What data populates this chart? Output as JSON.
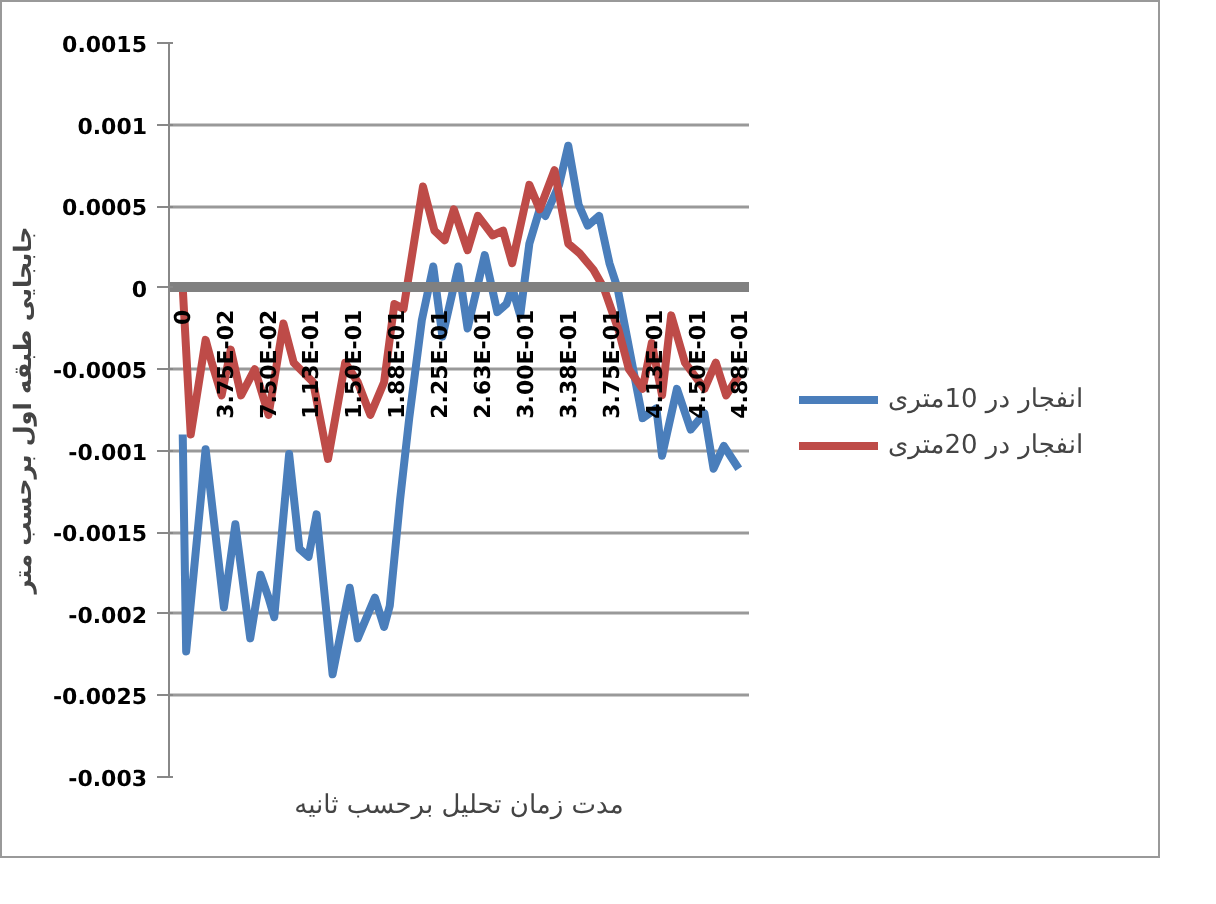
{
  "chart_data": {
    "type": "line",
    "xlabel": "مدت زمان تحلیل برحسب ثانیه",
    "ylabel": "جابجایی طبقه اول برحسب متر",
    "xlim": [
      -0.012,
      0.495
    ],
    "ylim": [
      -0.003,
      0.0015
    ],
    "xticks": [
      {
        "value": 0,
        "label": "0"
      },
      {
        "value": 0.0375,
        "label": "3.75E-02"
      },
      {
        "value": 0.075,
        "label": "7.50E-02"
      },
      {
        "value": 0.1125,
        "label": "1.13E-01"
      },
      {
        "value": 0.15,
        "label": "1.50E-01"
      },
      {
        "value": 0.1875,
        "label": "1.88E-01"
      },
      {
        "value": 0.225,
        "label": "2.25E-01"
      },
      {
        "value": 0.2625,
        "label": "2.63E-01"
      },
      {
        "value": 0.3,
        "label": "3.00E-01"
      },
      {
        "value": 0.3375,
        "label": "3.38E-01"
      },
      {
        "value": 0.375,
        "label": "3.75E-01"
      },
      {
        "value": 0.4125,
        "label": "4.13E-01"
      },
      {
        "value": 0.45,
        "label": "4.50E-01"
      },
      {
        "value": 0.4875,
        "label": "4.88E-01"
      }
    ],
    "yticks": [
      -0.003,
      -0.0025,
      -0.002,
      -0.0015,
      -0.001,
      -0.0005,
      0,
      0.0005,
      0.001,
      0.0015
    ],
    "grid": "y",
    "legend": "right",
    "marker": "none",
    "line_style": "solid",
    "series": [
      {
        "name": "انفجار در 10متری",
        "color": "#4a7ebb",
        "x": [
          0,
          0.003,
          0.02,
          0.036,
          0.046,
          0.059,
          0.068,
          0.075,
          0.08,
          0.093,
          0.102,
          0.11,
          0.117,
          0.131,
          0.146,
          0.153,
          0.168,
          0.176,
          0.181,
          0.19,
          0.198,
          0.209,
          0.219,
          0.227,
          0.241,
          0.249,
          0.264,
          0.275,
          0.283,
          0.288,
          0.295,
          0.303,
          0.312,
          0.317,
          0.329,
          0.337,
          0.346,
          0.354,
          0.364,
          0.373,
          0.38,
          0.388,
          0.397,
          0.402,
          0.414,
          0.419,
          0.432,
          0.444,
          0.456,
          0.464,
          0.473,
          0.486
        ],
        "values": [
          -0.0009,
          -0.00223,
          -0.00099,
          -0.00196,
          -0.00145,
          -0.00215,
          -0.00176,
          -0.0019,
          -0.00202,
          -0.00102,
          -0.0016,
          -0.00165,
          -0.00139,
          -0.00237,
          -0.00184,
          -0.00215,
          -0.0019,
          -0.00208,
          -0.00195,
          -0.0013,
          -0.0008,
          -0.0002,
          0.00013,
          -0.0003,
          0.00013,
          -0.00025,
          0.0002,
          -0.00015,
          -0.0001,
          0,
          -0.00017,
          0.00027,
          0.00048,
          0.00044,
          0.00063,
          0.00087,
          0.00051,
          0.00038,
          0.00044,
          0.00015,
          0,
          -0.00029,
          -0.00062,
          -0.0008,
          -0.00074,
          -0.00103,
          -0.00062,
          -0.00087,
          -0.00077,
          -0.00111,
          -0.00097,
          -0.00111
        ]
      },
      {
        "name": "انفجار در 20متری",
        "color": "#be4b48",
        "x": [
          0,
          0.007,
          0.02,
          0.025,
          0.034,
          0.042,
          0.051,
          0.063,
          0.075,
          0.088,
          0.097,
          0.114,
          0.127,
          0.142,
          0.153,
          0.164,
          0.176,
          0.185,
          0.193,
          0.21,
          0.22,
          0.229,
          0.237,
          0.249,
          0.258,
          0.271,
          0.28,
          0.288,
          0.303,
          0.312,
          0.325,
          0.337,
          0.347,
          0.359,
          0.368,
          0.381,
          0.39,
          0.402,
          0.41,
          0.419,
          0.427,
          0.439,
          0.456,
          0.466,
          0.475,
          0.486
        ],
        "values": [
          0,
          -0.0009,
          -0.00032,
          -0.00045,
          -0.00066,
          -0.00038,
          -0.00066,
          -0.0005,
          -0.00078,
          -0.00022,
          -0.00046,
          -0.00058,
          -0.00105,
          -0.00046,
          -0.00058,
          -0.00078,
          -0.00058,
          -0.0001,
          -0.00013,
          0.00062,
          0.00035,
          0.00029,
          0.00048,
          0.00023,
          0.00044,
          0.00032,
          0.00035,
          0.00015,
          0.00063,
          0.00048,
          0.00072,
          0.00027,
          0.00021,
          0.00011,
          0,
          -0.00026,
          -0.0005,
          -0.00062,
          -0.00034,
          -0.00066,
          -0.00017,
          -0.00046,
          -0.00062,
          -0.00046,
          -0.00066,
          -0.00054
        ]
      }
    ]
  }
}
